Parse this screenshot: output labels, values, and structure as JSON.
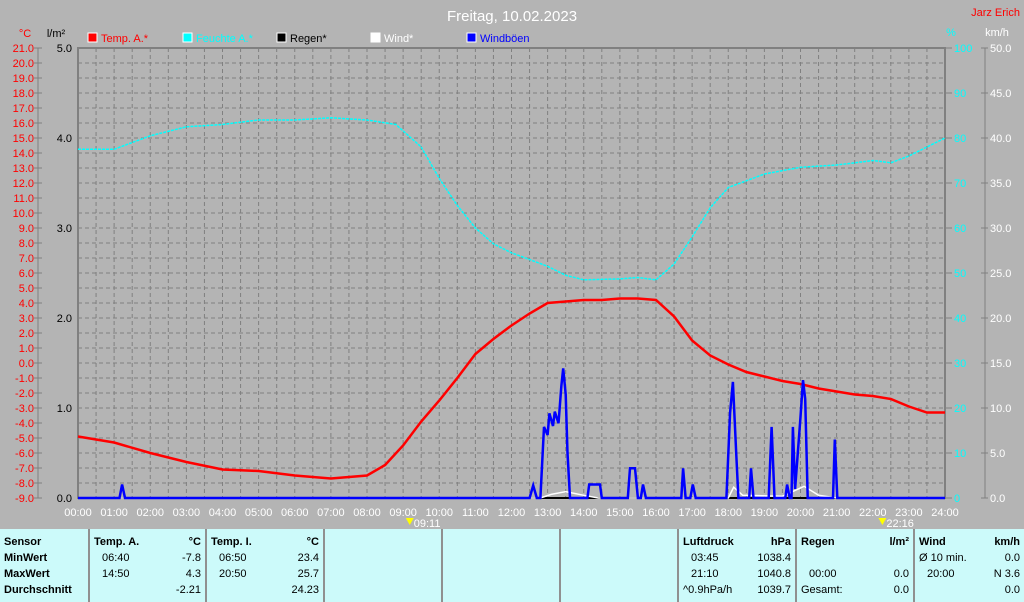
{
  "title": "Freitag, 10.02.2023",
  "author": "Jarz Erich",
  "colors": {
    "temp": "#ff0000",
    "humidity": "#00ffff",
    "rain": "#000000",
    "wind": "#ffffff",
    "gusts": "#0000ff",
    "background": "#b4b4b4",
    "table": "#ccfafa"
  },
  "legend": [
    {
      "label": "Temp. A.*",
      "color": "#ff0000"
    },
    {
      "label": "Feuchte A.*",
      "color": "#00ffff"
    },
    {
      "label": "Regen*",
      "color": "#000000"
    },
    {
      "label": "Wind*",
      "color": "#ffffff"
    },
    {
      "label": "Windböen",
      "color": "#0000ff"
    }
  ],
  "chart_data": {
    "type": "line",
    "title": "Freitag, 10.02.2023",
    "x_ticks": [
      "00:00",
      "01:00",
      "02:00",
      "03:00",
      "04:00",
      "05:00",
      "06:00",
      "07:00",
      "08:00",
      "09:00",
      "10:00",
      "11:00",
      "12:00",
      "13:00",
      "14:00",
      "15:00",
      "16:00",
      "17:00",
      "18:00",
      "19:00",
      "20:00",
      "21:00",
      "22:00",
      "23:00",
      "24:00"
    ],
    "axes": {
      "temp": {
        "unit": "°C",
        "range": [
          -9,
          21
        ],
        "ticks": [
          "21.0",
          "20.0",
          "19.0",
          "18.0",
          "17.0",
          "16.0",
          "15.0",
          "14.0",
          "13.0",
          "12.0",
          "11.0",
          "10.0",
          "9.0",
          "8.0",
          "7.0",
          "6.0",
          "5.0",
          "4.0",
          "3.0",
          "2.0",
          "1.0",
          "0.0",
          "-1.0",
          "-2.0",
          "-3.0",
          "-4.0",
          "-5.0",
          "-6.0",
          "-7.0",
          "-8.0",
          "-9.0"
        ]
      },
      "rain": {
        "unit": "l/m²",
        "range": [
          0,
          5
        ],
        "ticks": [
          "5.0",
          "4.0",
          "3.0",
          "2.0",
          "1.0",
          "0.0"
        ]
      },
      "humidity": {
        "unit": "%",
        "range": [
          0,
          100
        ],
        "ticks": [
          "100",
          "90",
          "80",
          "70",
          "60",
          "50",
          "40",
          "30",
          "20",
          "10",
          "0"
        ]
      },
      "wind": {
        "unit": "km/h",
        "range": [
          0,
          50
        ],
        "ticks": [
          "50.0",
          "45.0",
          "40.0",
          "35.0",
          "30.0",
          "25.0",
          "20.0",
          "15.0",
          "10.0",
          "5.0",
          "0.0"
        ]
      }
    },
    "grid": true,
    "legend_placement": "top",
    "markers": [
      {
        "time": "09:11",
        "type": "sunrise"
      },
      {
        "time": "22:16",
        "type": "sunset"
      }
    ],
    "series": [
      {
        "name": "Temp. A.*",
        "axis": "temp",
        "points": [
          [
            0,
            -4.9
          ],
          [
            1,
            -5.3
          ],
          [
            2,
            -6.0
          ],
          [
            3,
            -6.6
          ],
          [
            4,
            -7.1
          ],
          [
            5,
            -7.2
          ],
          [
            6,
            -7.5
          ],
          [
            7,
            -7.7
          ],
          [
            8,
            -7.5
          ],
          [
            8.5,
            -6.8
          ],
          [
            9,
            -5.5
          ],
          [
            9.5,
            -3.9
          ],
          [
            10,
            -2.5
          ],
          [
            10.5,
            -1.0
          ],
          [
            11,
            0.6
          ],
          [
            11.5,
            1.6
          ],
          [
            12,
            2.5
          ],
          [
            12.5,
            3.3
          ],
          [
            13,
            4.0
          ],
          [
            13.5,
            4.1
          ],
          [
            14,
            4.2
          ],
          [
            14.5,
            4.2
          ],
          [
            15,
            4.3
          ],
          [
            15.5,
            4.3
          ],
          [
            16,
            4.2
          ],
          [
            16.5,
            3.1
          ],
          [
            17,
            1.5
          ],
          [
            17.5,
            0.5
          ],
          [
            18,
            -0.1
          ],
          [
            18.5,
            -0.6
          ],
          [
            19,
            -0.9
          ],
          [
            19.5,
            -1.2
          ],
          [
            20,
            -1.4
          ],
          [
            20.5,
            -1.7
          ],
          [
            21,
            -1.9
          ],
          [
            21.5,
            -2.1
          ],
          [
            22,
            -2.2
          ],
          [
            22.5,
            -2.4
          ],
          [
            23,
            -2.9
          ],
          [
            23.5,
            -3.3
          ],
          [
            24,
            -3.3
          ]
        ]
      },
      {
        "name": "Feuchte A.*",
        "axis": "humidity",
        "points": [
          [
            0,
            77.5
          ],
          [
            1,
            77.5
          ],
          [
            2,
            80.5
          ],
          [
            3,
            82.5
          ],
          [
            4,
            83
          ],
          [
            5,
            84
          ],
          [
            6,
            84
          ],
          [
            7,
            84.5
          ],
          [
            8,
            84
          ],
          [
            8.8,
            83
          ],
          [
            9.5,
            78
          ],
          [
            10,
            71
          ],
          [
            10.5,
            65
          ],
          [
            11,
            60
          ],
          [
            11.5,
            56.5
          ],
          [
            12,
            54.5
          ],
          [
            13,
            51.5
          ],
          [
            13.5,
            49.5
          ],
          [
            14,
            48.5
          ],
          [
            15,
            48.7
          ],
          [
            15.5,
            49
          ],
          [
            16,
            48.5
          ],
          [
            16.5,
            52
          ],
          [
            17,
            58
          ],
          [
            17.5,
            64.5
          ],
          [
            18,
            69
          ],
          [
            18.5,
            70.5
          ],
          [
            19,
            72
          ],
          [
            20,
            73.5
          ],
          [
            21,
            74
          ],
          [
            21.5,
            74.5
          ],
          [
            22,
            75
          ],
          [
            22.5,
            74.5
          ],
          [
            23,
            76
          ],
          [
            23.5,
            78
          ],
          [
            24,
            80
          ]
        ]
      },
      {
        "name": "Regen*",
        "axis": "rain",
        "points": [
          [
            0,
            0
          ],
          [
            24,
            0
          ]
        ]
      },
      {
        "name": "Wind*",
        "axis": "wind",
        "points": [
          [
            0,
            0
          ],
          [
            12.8,
            0
          ],
          [
            13.1,
            0.4
          ],
          [
            13.5,
            0.7
          ],
          [
            14,
            0.3
          ],
          [
            14.4,
            0
          ],
          [
            18,
            0
          ],
          [
            18.15,
            1.2
          ],
          [
            18.4,
            0.3
          ],
          [
            19.5,
            0.2
          ],
          [
            20.1,
            1.3
          ],
          [
            20.5,
            0.3
          ],
          [
            21,
            0
          ],
          [
            24,
            0
          ]
        ]
      },
      {
        "name": "Windböen",
        "axis": "wind",
        "points": [
          [
            0,
            0
          ],
          [
            1.15,
            0
          ],
          [
            1.22,
            1.5
          ],
          [
            1.3,
            0
          ],
          [
            12.5,
            0
          ],
          [
            12.6,
            1.4
          ],
          [
            12.7,
            0
          ],
          [
            12.8,
            0
          ],
          [
            12.9,
            7.9
          ],
          [
            13.0,
            7.0
          ],
          [
            13.05,
            9.4
          ],
          [
            13.15,
            8.0
          ],
          [
            13.2,
            9.6
          ],
          [
            13.3,
            8.3
          ],
          [
            13.38,
            12.5
          ],
          [
            13.43,
            14.4
          ],
          [
            13.5,
            11.5
          ],
          [
            13.55,
            5
          ],
          [
            13.62,
            0
          ],
          [
            14.1,
            0
          ],
          [
            14.15,
            1.5
          ],
          [
            14.45,
            1.5
          ],
          [
            14.5,
            0
          ],
          [
            15.22,
            0
          ],
          [
            15.28,
            3.3
          ],
          [
            15.42,
            3.3
          ],
          [
            15.5,
            0
          ],
          [
            15.58,
            0
          ],
          [
            15.64,
            1.5
          ],
          [
            15.72,
            0
          ],
          [
            16.7,
            0
          ],
          [
            16.75,
            3.3
          ],
          [
            16.82,
            0
          ],
          [
            16.95,
            0
          ],
          [
            17.02,
            1.5
          ],
          [
            17.1,
            0
          ],
          [
            17.95,
            0
          ],
          [
            18.05,
            9.5
          ],
          [
            18.13,
            12.9
          ],
          [
            18.22,
            5
          ],
          [
            18.28,
            0
          ],
          [
            18.58,
            0
          ],
          [
            18.63,
            3.3
          ],
          [
            18.7,
            0
          ],
          [
            19.12,
            0
          ],
          [
            19.2,
            7.9
          ],
          [
            19.28,
            0
          ],
          [
            19.58,
            0
          ],
          [
            19.63,
            1.5
          ],
          [
            19.7,
            0
          ],
          [
            19.75,
            0
          ],
          [
            19.79,
            7.9
          ],
          [
            19.85,
            1
          ],
          [
            20.0,
            9
          ],
          [
            20.07,
            13.1
          ],
          [
            20.13,
            11
          ],
          [
            20.2,
            0
          ],
          [
            20.9,
            0
          ],
          [
            20.95,
            6.5
          ],
          [
            21.02,
            0
          ],
          [
            24,
            0
          ]
        ]
      }
    ]
  },
  "table": {
    "col1": {
      "rows": [
        "Sensor",
        "MinWert",
        "MaxWert",
        "Durchschnitt"
      ]
    },
    "col2": {
      "header": "Temp. A.",
      "unit": "°C",
      "min_time": "06:40",
      "min": "-7.8",
      "max_time": "14:50",
      "max": "4.3",
      "avg": "-2.21"
    },
    "col3": {
      "header": "Temp. I.",
      "unit": "°C",
      "min_time": "06:50",
      "min": "23.4",
      "max_time": "20:50",
      "max": "25.7",
      "avg": "24.23"
    },
    "col6": {
      "header": "Luftdruck",
      "unit": "hPa",
      "min_time": "03:45",
      "min": "1038.4",
      "max_time": "21:10",
      "max": "1040.8",
      "trend": "^0.9hPa/h",
      "avg": "1039.7"
    },
    "col7": {
      "header": "Regen",
      "unit": "l/m²",
      "max_time": "00:00",
      "max": "0.0",
      "total_label": "Gesamt:",
      "total": "0.0"
    },
    "col8": {
      "header": "Wind",
      "unit": "km/h",
      "avg_label": "Ø 10 min.",
      "avg": "0.0",
      "max_time": "20:00",
      "max": "N 3.6",
      "third": "0.0"
    }
  }
}
